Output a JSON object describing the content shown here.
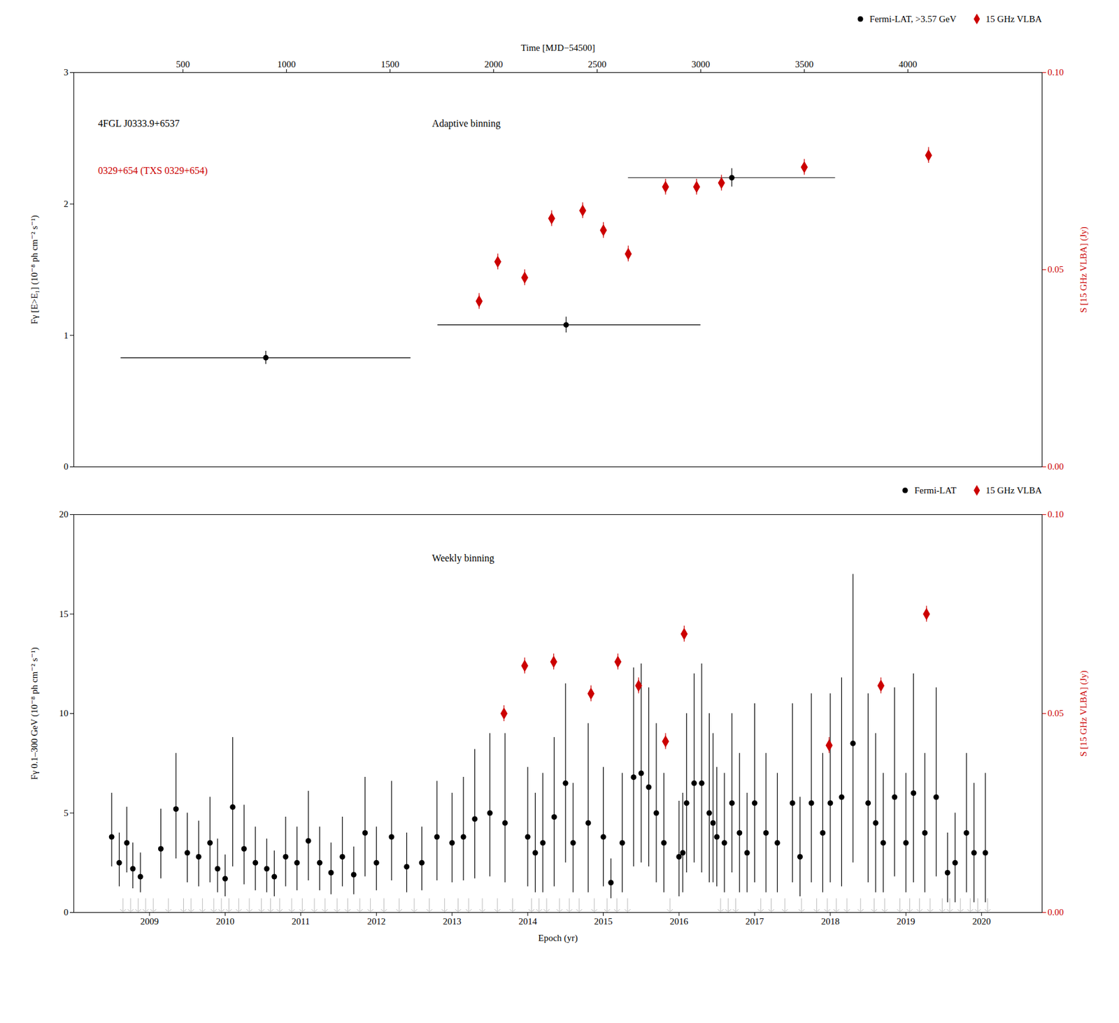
{
  "chart_data": [
    {
      "type": "scatter",
      "xlabel": "Time [MJD−54500]",
      "xlim": [
        -26.991975,
        4648.208025
      ],
      "xticks": [
        500,
        1000,
        1500,
        2000,
        2500,
        3000,
        3500,
        4000
      ],
      "ylabel": "Fγ [E>E₁] (10⁻⁸ ph cm⁻² s⁻¹)",
      "ylim": [
        0,
        3
      ],
      "yticks": [
        0,
        1,
        2,
        3
      ],
      "y2label": "S [15 GHz VLBA] (Jy)",
      "y2lim": [
        0,
        0.1
      ],
      "y2ticks": [
        {
          "value": 0,
          "label": "0.00"
        },
        {
          "value": 0.05,
          "label": "0.05"
        },
        {
          "value": 0.1,
          "label": "0.10"
        }
      ],
      "grid": false,
      "legend": "upper right",
      "annotations": [
        {
          "text": "4FGL J0333.9+6537",
          "color": "#000000"
        },
        {
          "text": "0329+654 (TXS 0329+654)",
          "color": "#cc0000"
        },
        {
          "text": "Adaptive binning",
          "color": "#000000"
        }
      ],
      "series": [
        {
          "name": "Fermi-LAT, >3.57 GeV",
          "color": "#000000",
          "marker": "circle",
          "x": [
            900,
            2350,
            3150
          ],
          "values": [
            0.83,
            1.08,
            2.2
          ],
          "xerr_lo": [
            700,
            620,
            500
          ],
          "xerr_hi": [
            700,
            650,
            500
          ],
          "yerr_lo": [
            0.05,
            0.06,
            0.07
          ],
          "yerr_hi": [
            0.05,
            0.06,
            0.07
          ]
        },
        {
          "name": "15 GHz VLBA",
          "color": "#cc0000",
          "marker": "diamond",
          "axis": "y2",
          "x": [
            1930,
            2020,
            2150,
            2280,
            2430,
            2530,
            2650,
            2830,
            2980,
            3100,
            3500,
            4100
          ],
          "values": [
            0.042,
            0.052,
            0.048,
            0.063,
            0.065,
            0.06,
            0.054,
            0.071,
            0.071,
            0.072,
            0.076,
            0.079
          ],
          "yerr_lo": [
            0.002,
            0.002,
            0.002,
            0.002,
            0.002,
            0.002,
            0.002,
            0.002,
            0.002,
            0.002,
            0.002,
            0.002
          ],
          "yerr_hi": [
            0.002,
            0.002,
            0.002,
            0.002,
            0.002,
            0.002,
            0.002,
            0.002,
            0.002,
            0.002,
            0.002,
            0.002
          ]
        }
      ]
    },
    {
      "type": "scatter",
      "xlabel": "Epoch (yr)",
      "xlim": [
        2008.0,
        2020.8
      ],
      "xticks": [
        2009,
        2010,
        2011,
        2012,
        2013,
        2014,
        2015,
        2016,
        2017,
        2018,
        2019,
        2020
      ],
      "ylabel": "Fγ 0.1–300 GeV (10⁻⁸ ph cm⁻² s⁻¹)",
      "ylim": [
        0,
        20
      ],
      "yticks": [
        0,
        5,
        10,
        15,
        20
      ],
      "y2label": "S [15 GHz VLBA] (Jy)",
      "y2lim": [
        0,
        0.1
      ],
      "y2ticks": [
        {
          "value": 0,
          "label": "0.00"
        },
        {
          "value": 0.05,
          "label": "0.05"
        },
        {
          "value": 0.1,
          "label": "0.10"
        }
      ],
      "grid": false,
      "legend": "upper right",
      "annotations": [
        {
          "text": "Weekly binning",
          "color": "#000000"
        }
      ],
      "upper_limits": {
        "color": "#bbbbbb",
        "marker": "arrow",
        "x": [
          2008.65,
          2008.75,
          2008.85,
          2008.95,
          2009.05,
          2009.25,
          2009.45,
          2009.55,
          2009.7,
          2009.85,
          2009.95,
          2010.05,
          2010.18,
          2010.32,
          2010.48,
          2010.6,
          2010.72,
          2010.88,
          2011.02,
          2011.18,
          2011.32,
          2011.48,
          2011.62,
          2011.78,
          2011.92,
          2012.1,
          2012.3,
          2012.5,
          2012.7,
          2012.9,
          2013.08,
          2013.22,
          2013.4,
          2013.6,
          2013.8,
          2014.05,
          2014.15,
          2014.25,
          2014.42,
          2014.55,
          2014.68,
          2014.88,
          2015.05,
          2015.18,
          2015.32,
          2015.88,
          2016.55,
          2016.65,
          2016.75,
          2017.08,
          2017.22,
          2017.4,
          2017.62,
          2017.82,
          2017.96,
          2018.08,
          2018.22,
          2018.4,
          2018.58,
          2018.72,
          2018.92,
          2019.05,
          2019.18,
          2019.32,
          2019.48,
          2019.58,
          2019.72,
          2019.85,
          2019.95,
          2020.08
        ],
        "values": [
          0.7,
          0.7,
          0.7,
          0.7,
          0.7,
          0.7,
          0.7,
          0.7,
          0.7,
          0.7,
          0.7,
          0.7,
          0.7,
          0.7,
          0.7,
          0.7,
          0.7,
          0.7,
          0.7,
          0.7,
          0.7,
          0.7,
          0.7,
          0.7,
          0.7,
          0.7,
          0.7,
          0.7,
          0.7,
          0.7,
          0.7,
          0.7,
          0.7,
          0.7,
          0.7,
          0.7,
          0.7,
          0.7,
          0.7,
          0.7,
          0.7,
          0.7,
          0.7,
          0.7,
          0.7,
          0.7,
          0.7,
          0.7,
          0.7,
          0.7,
          0.7,
          0.7,
          0.7,
          0.7,
          0.7,
          0.7,
          0.7,
          0.7,
          0.7,
          0.7,
          0.7,
          0.7,
          0.7,
          0.7,
          0.7,
          0.7,
          0.7,
          0.7,
          0.7,
          0.7
        ]
      },
      "series": [
        {
          "name": "Fermi-LAT",
          "color": "#000000",
          "marker": "circle",
          "x": [
            2008.5,
            2008.6,
            2008.7,
            2008.78,
            2008.88,
            2009.15,
            2009.35,
            2009.5,
            2009.65,
            2009.8,
            2009.9,
            2010.0,
            2010.1,
            2010.25,
            2010.4,
            2010.55,
            2010.65,
            2010.8,
            2010.95,
            2011.1,
            2011.25,
            2011.4,
            2011.55,
            2011.7,
            2011.85,
            2012.0,
            2012.2,
            2012.4,
            2012.6,
            2012.8,
            2013.0,
            2013.15,
            2013.3,
            2013.5,
            2013.7,
            2014.0,
            2014.1,
            2014.2,
            2014.35,
            2014.5,
            2014.6,
            2014.8,
            2015.0,
            2015.1,
            2015.25,
            2015.4,
            2015.5,
            2015.6,
            2015.7,
            2015.8,
            2016.0,
            2016.05,
            2016.1,
            2016.2,
            2016.3,
            2016.4,
            2016.45,
            2016.5,
            2016.6,
            2016.7,
            2016.8,
            2016.9,
            2017.0,
            2017.15,
            2017.3,
            2017.5,
            2017.6,
            2017.75,
            2017.9,
            2018.0,
            2018.15,
            2018.3,
            2018.5,
            2018.6,
            2018.7,
            2018.85,
            2019.0,
            2019.1,
            2019.25,
            2019.4,
            2019.55,
            2019.65,
            2019.8,
            2019.9,
            2020.05
          ],
          "values": [
            3.8,
            2.5,
            3.5,
            2.2,
            1.8,
            3.2,
            5.2,
            3.0,
            2.8,
            3.5,
            2.2,
            1.7,
            5.3,
            3.2,
            2.5,
            2.2,
            1.8,
            2.8,
            2.5,
            3.6,
            2.5,
            2.0,
            2.8,
            1.9,
            4.0,
            2.5,
            3.8,
            2.3,
            2.5,
            3.8,
            3.5,
            3.8,
            4.7,
            5.0,
            4.5,
            3.8,
            3.0,
            3.5,
            4.8,
            6.5,
            3.5,
            4.5,
            3.8,
            1.5,
            3.5,
            6.8,
            7.0,
            6.3,
            5.0,
            3.5,
            2.8,
            3.0,
            5.5,
            6.5,
            6.5,
            5.0,
            4.5,
            3.8,
            3.5,
            5.5,
            4.0,
            3.0,
            5.5,
            4.0,
            3.5,
            5.5,
            2.8,
            5.5,
            4.0,
            5.5,
            5.8,
            8.5,
            5.5,
            4.5,
            3.5,
            5.8,
            3.5,
            6.0,
            4.0,
            5.8,
            2.0,
            2.5,
            4.0,
            3.0,
            3.0
          ],
          "yerr_lo": [
            1.5,
            1.2,
            1.5,
            1.0,
            0.8,
            1.5,
            2.5,
            1.5,
            1.5,
            2.0,
            1.2,
            0.9,
            3.0,
            1.8,
            1.4,
            1.2,
            1.0,
            1.5,
            1.4,
            2.0,
            1.4,
            1.1,
            1.5,
            1.0,
            2.2,
            1.4,
            2.2,
            1.3,
            1.4,
            2.2,
            2.0,
            2.2,
            3.0,
            3.2,
            3.0,
            2.5,
            2.0,
            2.5,
            3.5,
            4.0,
            2.5,
            3.5,
            2.5,
            0.8,
            2.5,
            4.5,
            4.5,
            4.0,
            3.5,
            2.5,
            2.0,
            2.0,
            3.5,
            4.0,
            4.5,
            3.5,
            3.0,
            2.5,
            2.5,
            3.5,
            3.0,
            2.0,
            4.0,
            3.0,
            2.5,
            4.0,
            2.0,
            4.0,
            3.0,
            4.0,
            4.5,
            6.0,
            4.0,
            3.5,
            2.5,
            4.0,
            2.5,
            4.5,
            3.0,
            4.0,
            1.5,
            2.0,
            3.0,
            2.5,
            2.5
          ],
          "yerr_hi": [
            2.2,
            1.5,
            1.8,
            1.3,
            1.2,
            2.0,
            2.8,
            2.0,
            1.8,
            2.3,
            1.5,
            1.2,
            3.5,
            2.2,
            1.8,
            1.5,
            1.3,
            2.0,
            1.8,
            2.5,
            1.8,
            1.5,
            2.0,
            1.4,
            2.8,
            1.8,
            2.8,
            1.7,
            1.8,
            2.8,
            2.5,
            3.0,
            3.5,
            4.0,
            4.5,
            3.5,
            3.0,
            3.5,
            4.0,
            5.0,
            3.0,
            5.0,
            3.5,
            1.2,
            3.5,
            5.5,
            5.5,
            5.0,
            4.5,
            3.5,
            2.8,
            3.0,
            4.5,
            5.5,
            6.0,
            5.0,
            4.5,
            3.5,
            3.5,
            4.5,
            4.0,
            3.0,
            5.0,
            4.0,
            3.5,
            5.0,
            3.0,
            5.5,
            4.0,
            5.5,
            6.0,
            8.5,
            5.5,
            4.5,
            3.5,
            5.5,
            3.5,
            6.0,
            4.0,
            5.5,
            2.0,
            2.5,
            4.0,
            3.5,
            4.0
          ]
        },
        {
          "name": "15 GHz VLBA",
          "color": "#cc0000",
          "marker": "diamond",
          "axis": "y2",
          "x": [
            2013.686494,
            2013.960279,
            2014.343578,
            2014.836391,
            2015.192312,
            2015.466097,
            2015.822018,
            2016.068424,
            2017.98492,
            2018.669383,
            2019.27171
          ],
          "values": [
            0.05,
            0.062,
            0.063,
            0.055,
            0.063,
            0.057,
            0.043,
            0.07,
            0.042,
            0.057,
            0.075
          ],
          "yerr_lo": [
            0.002,
            0.002,
            0.002,
            0.002,
            0.002,
            0.002,
            0.002,
            0.002,
            0.002,
            0.002,
            0.002
          ],
          "yerr_hi": [
            0.002,
            0.002,
            0.002,
            0.002,
            0.002,
            0.002,
            0.002,
            0.002,
            0.002,
            0.002,
            0.002
          ]
        }
      ]
    }
  ]
}
